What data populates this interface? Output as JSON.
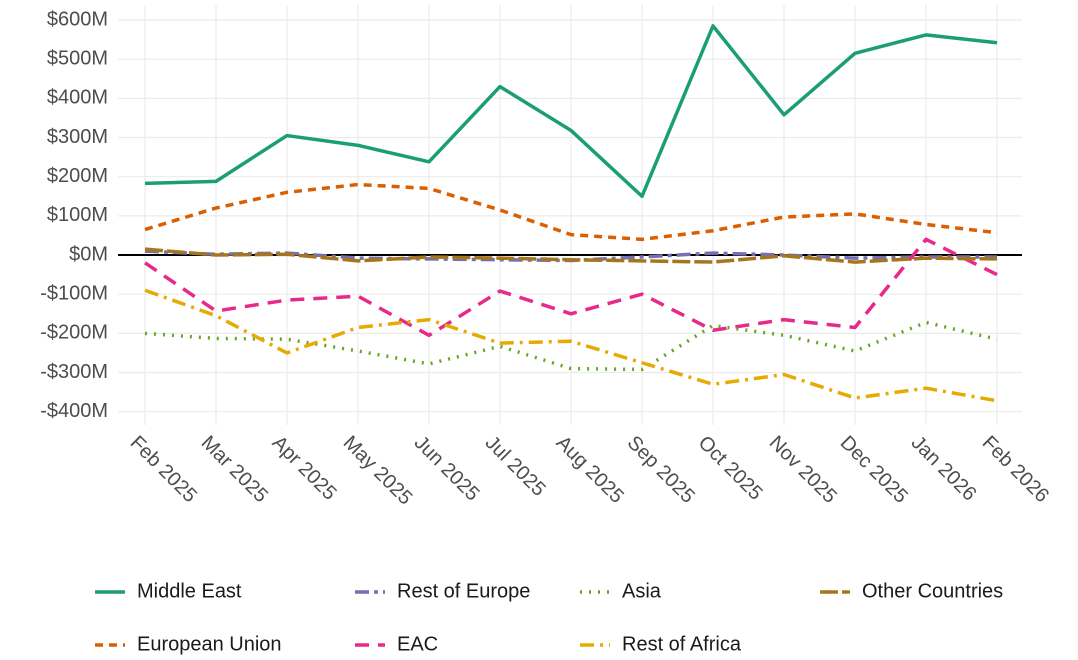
{
  "chart_data": {
    "type": "line",
    "categories": [
      "Feb 2025",
      "Mar 2025",
      "Apr 2025",
      "May 2025",
      "Jun 2025",
      "Jul 2025",
      "Aug 2025",
      "Sep 2025",
      "Oct 2025",
      "Nov 2025",
      "Dec 2025",
      "Jan 2026",
      "Feb 2026"
    ],
    "ylim": [
      -400,
      600
    ],
    "yticks": [
      {
        "value": 600,
        "label": "$600M"
      },
      {
        "value": 500,
        "label": "$500M"
      },
      {
        "value": 400,
        "label": "$400M"
      },
      {
        "value": 300,
        "label": "$300M"
      },
      {
        "value": 200,
        "label": "$200M"
      },
      {
        "value": 100,
        "label": "$100M"
      },
      {
        "value": 0,
        "label": "$0M"
      },
      {
        "value": -100,
        "label": "-$100M"
      },
      {
        "value": -200,
        "label": "-$200M"
      },
      {
        "value": -300,
        "label": "-$300M"
      },
      {
        "value": -400,
        "label": "-$400M"
      }
    ],
    "grid": true,
    "legend": "bottom",
    "series": [
      {
        "name": "Middle East",
        "color": "#1b9e77",
        "values": [
          183,
          188,
          305,
          280,
          238,
          430,
          318,
          150,
          585,
          358,
          515,
          562,
          542
        ]
      },
      {
        "name": "European Union",
        "color": "#d95f02",
        "values": [
          65,
          120,
          160,
          180,
          170,
          115,
          52,
          40,
          62,
          97,
          105,
          78,
          57
        ]
      },
      {
        "name": "Rest of Europe",
        "color": "#7570b3",
        "values": [
          10,
          2,
          5,
          -8,
          -10,
          -12,
          -14,
          -5,
          5,
          0,
          -8,
          -5,
          -5
        ]
      },
      {
        "name": "EAC",
        "color": "#e7298a",
        "values": [
          -20,
          -143,
          -115,
          -105,
          -205,
          -92,
          -150,
          -100,
          -192,
          -165,
          -185,
          40,
          -50
        ]
      },
      {
        "name": "Asia",
        "color": "#66a61e",
        "values": [
          -200,
          -213,
          -215,
          -245,
          -278,
          -233,
          -290,
          -292,
          -180,
          -205,
          -245,
          -172,
          -215
        ]
      },
      {
        "name": "Rest of Africa",
        "color": "#e6ab02",
        "values": [
          -90,
          -155,
          -250,
          -185,
          -165,
          -225,
          -220,
          -275,
          -330,
          -305,
          -365,
          -340,
          -372
        ]
      },
      {
        "name": "Other Countries",
        "color": "#a6761d",
        "values": [
          15,
          0,
          2,
          -15,
          -5,
          -8,
          -12,
          -15,
          -18,
          -2,
          -18,
          -8,
          -10
        ]
      }
    ]
  }
}
